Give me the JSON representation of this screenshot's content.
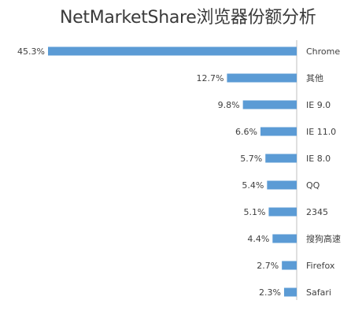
{
  "chart_data": {
    "type": "bar",
    "orientation": "horizontal-mirrored",
    "title": "NetMarketShare浏览器份额分析",
    "categories": [
      "Chrome",
      "其他",
      "IE 9.0",
      "IE 11.0",
      "IE 8.0",
      "QQ",
      "2345",
      "搜狗高速",
      "Firefox",
      "Safari"
    ],
    "values": [
      45.3,
      12.7,
      9.8,
      6.6,
      5.7,
      5.4,
      5.1,
      4.4,
      2.7,
      2.3
    ],
    "data_labels": [
      "45.3%",
      "12.7%",
      "9.8%",
      "6.6%",
      "5.7%",
      "5.4%",
      "5.1%",
      "4.4%",
      "2.7%",
      "2.3%"
    ],
    "xlim": [
      0,
      45.3
    ],
    "bar_color": "#5b9bd5",
    "grid": false,
    "legend": "none"
  }
}
